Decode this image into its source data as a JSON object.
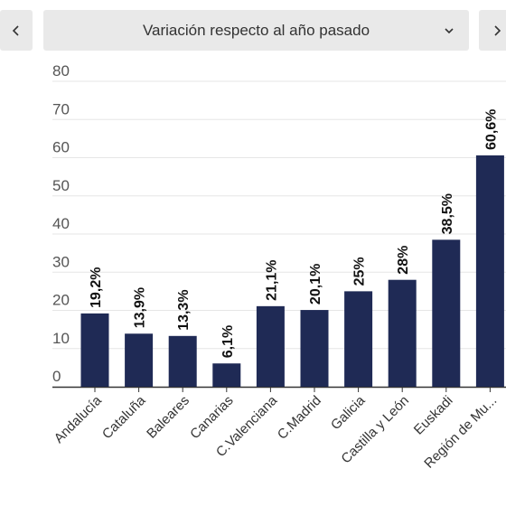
{
  "controls": {
    "prev_icon": "chevron-left-icon",
    "next_icon": "chevron-right-icon",
    "dropdown_icon": "chevron-down-icon",
    "selected_label": "Variación respecto al año pasado"
  },
  "chart_data": {
    "type": "bar",
    "categories": [
      "Andalucía",
      "Cataluña",
      "Baleares",
      "Canarias",
      "C.Valenciana",
      "C.Madrid",
      "Galicia",
      "Castilla y León",
      "Euskadi",
      "Región de Mu..."
    ],
    "values": [
      19.2,
      13.9,
      13.3,
      6.1,
      21.1,
      20.1,
      25,
      28,
      38.5,
      60.6
    ],
    "value_labels": [
      "19,2%",
      "13,9%",
      "13,3%",
      "6,1%",
      "21,1%",
      "20,1%",
      "25%",
      "28%",
      "38,5%",
      "60,6%"
    ],
    "ylim": [
      0,
      80
    ],
    "yticks": [
      0,
      10,
      20,
      30,
      40,
      50,
      60,
      70,
      80
    ],
    "grid": true,
    "bar_color": "#1f2a55"
  }
}
